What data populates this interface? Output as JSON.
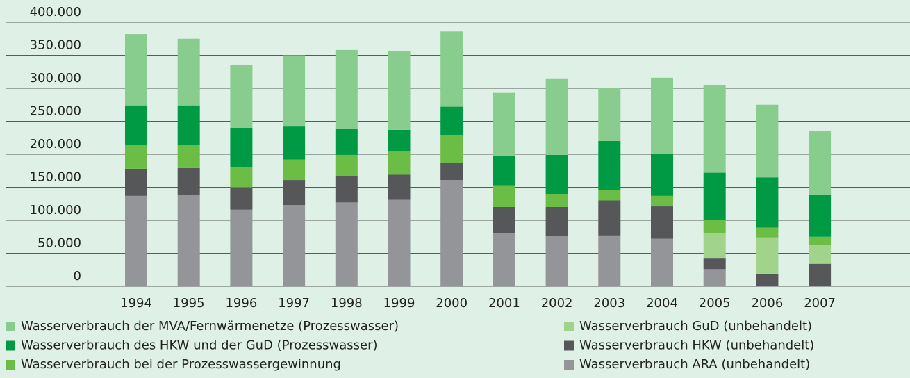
{
  "chart_data": {
    "type": "bar",
    "stacked": true,
    "categories": [
      "1994",
      "1995",
      "1996",
      "1997",
      "1998",
      "1999",
      "2000",
      "2001",
      "2002",
      "2003",
      "2004",
      "2005",
      "2006",
      "2007"
    ],
    "series": [
      {
        "name": "Wasserverbrauch ARA (unbehandelt)",
        "color": "#939598",
        "values": [
          137000,
          138000,
          116000,
          123000,
          127000,
          131000,
          161000,
          80000,
          76000,
          77000,
          72000,
          26000,
          0,
          0
        ]
      },
      {
        "name": "Wasserverbrauch HKW (unbehandelt)",
        "color": "#555759",
        "values": [
          41000,
          41000,
          34000,
          38000,
          40000,
          38000,
          26000,
          40000,
          44000,
          53000,
          49000,
          16000,
          19000,
          34000
        ]
      },
      {
        "name": "Wasserverbrauch GuD (unbehandelt)",
        "color": "#a1d48a",
        "values": [
          0,
          0,
          0,
          0,
          0,
          0,
          0,
          0,
          0,
          0,
          0,
          39000,
          55000,
          29000
        ]
      },
      {
        "name": "Wasserverbrauch bei der Prozesswassergewinnung",
        "color": "#6cbd45",
        "values": [
          36000,
          35000,
          30000,
          31000,
          32000,
          35000,
          42000,
          33000,
          20000,
          16000,
          16000,
          20000,
          15000,
          12000
        ]
      },
      {
        "name": "Wasserverbrauch des HKW und der GuD (Prozesswasser)",
        "color": "#009a44",
        "values": [
          60000,
          60000,
          60000,
          50000,
          40000,
          33000,
          43000,
          44000,
          59000,
          74000,
          64000,
          71000,
          76000,
          64000
        ]
      },
      {
        "name": "Wasserverbrauch der MVA/Fernwärmenetze (Prozesswasser)",
        "color": "#88cc8e",
        "values": [
          108000,
          101000,
          95000,
          108000,
          119000,
          119000,
          114000,
          96000,
          116000,
          80000,
          115000,
          133000,
          110000,
          96000
        ]
      }
    ],
    "ylim": [
      0,
      400000
    ],
    "yticks": [
      0,
      {
        "value": 50000,
        "label": "50.000"
      },
      {
        "value": 100000,
        "label": "100.000"
      },
      {
        "value": 150000,
        "label": "150.000"
      },
      {
        "value": 200000,
        "label": "200.000"
      },
      {
        "value": 250000,
        "label": "250.000"
      },
      {
        "value": 300000,
        "label": "300.000"
      },
      {
        "value": 350000,
        "label": "350.000"
      },
      {
        "value": 400000,
        "label": "400.000"
      }
    ],
    "grid": true
  }
}
